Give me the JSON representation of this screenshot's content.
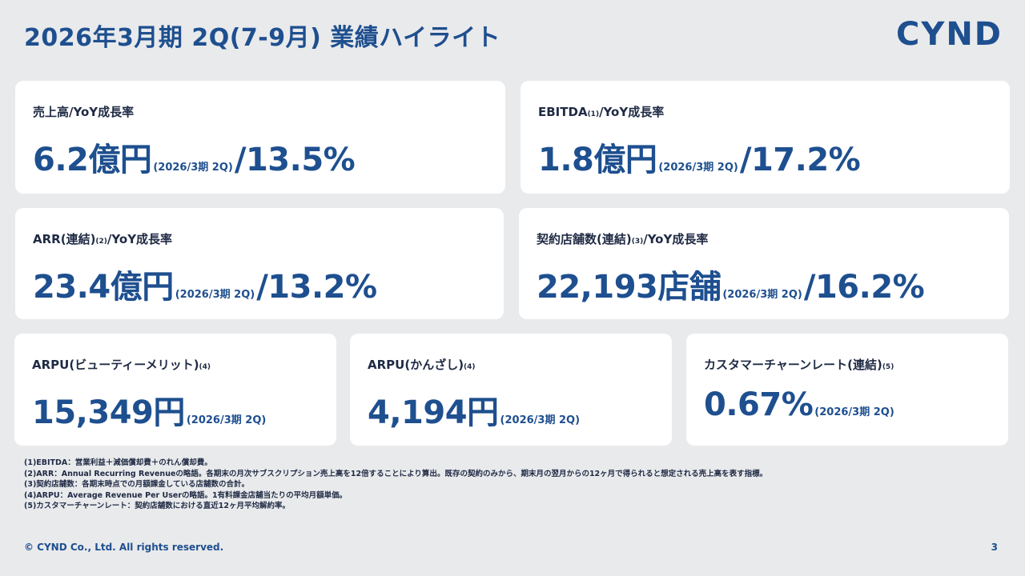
{
  "slide": {
    "title": "2026年3月期 2Q(7-9月) 業績ハイライト",
    "logo": "CYND",
    "page_number": "3",
    "copyright": "© CYND Co., Ltd. All rights reserved."
  },
  "cards": {
    "revenue": {
      "label": "売上高/YoY成長率",
      "value": "6.2億円",
      "period": "(2026/3期 2Q)",
      "growth": "/13.5%"
    },
    "ebitda": {
      "label": "EBITDA",
      "label_note": "(1)",
      "label_suffix": "/YoY成長率",
      "value": "1.8億円",
      "period": "(2026/3期 2Q)",
      "growth": "/17.2%"
    },
    "arr": {
      "label": "ARR(連結)",
      "label_note": "(2)",
      "label_suffix": "/YoY成長率",
      "value": "23.4億円",
      "period": "(2026/3期 2Q)",
      "growth": "/13.2%"
    },
    "stores": {
      "label": "契約店舗数(連結)",
      "label_note": "(3)",
      "label_suffix": "/YoY成長率",
      "value": "22,193店舗",
      "period": "(2026/3期 2Q)",
      "growth": "/16.2%"
    },
    "arpu_beauty": {
      "label": "ARPU(ビューティーメリット)",
      "label_note": "(4)",
      "value": "15,349円",
      "period": "(2026/3期 2Q)"
    },
    "arpu_kanzashi": {
      "label": "ARPU(かんざし)",
      "label_note": "(4)",
      "value": "4,194円",
      "period": "(2026/3期 2Q)"
    },
    "churn": {
      "label": "カスタマーチャーンレート(連結)",
      "label_note": "(5)",
      "value": "0.67%",
      "period": "(2026/3期 2Q)"
    }
  },
  "footnotes": [
    "(1)EBITDA：営業利益＋減価償却費＋のれん償却費。",
    "(2)ARR：Annual Recurring Revenueの略語。各期末の月次サブスクリプション売上高を12倍することにより算出。既存の契約のみから、期末月の翌月からの12ヶ月で得られると想定される売上高を表す指標。",
    "(3)契約店舗数：各期末時点での月額課金している店舗数の合計。",
    "(4)ARPU：Average Revenue Per Userの略語。1有料課金店舗当たりの平均月額単価。",
    "(5)カスタマーチャーンレート：契約店舗数における直近12ヶ月平均解約率。"
  ],
  "colors": {
    "accent": "#1e4f8f",
    "background": "#e9eaec",
    "card": "#ffffff"
  }
}
